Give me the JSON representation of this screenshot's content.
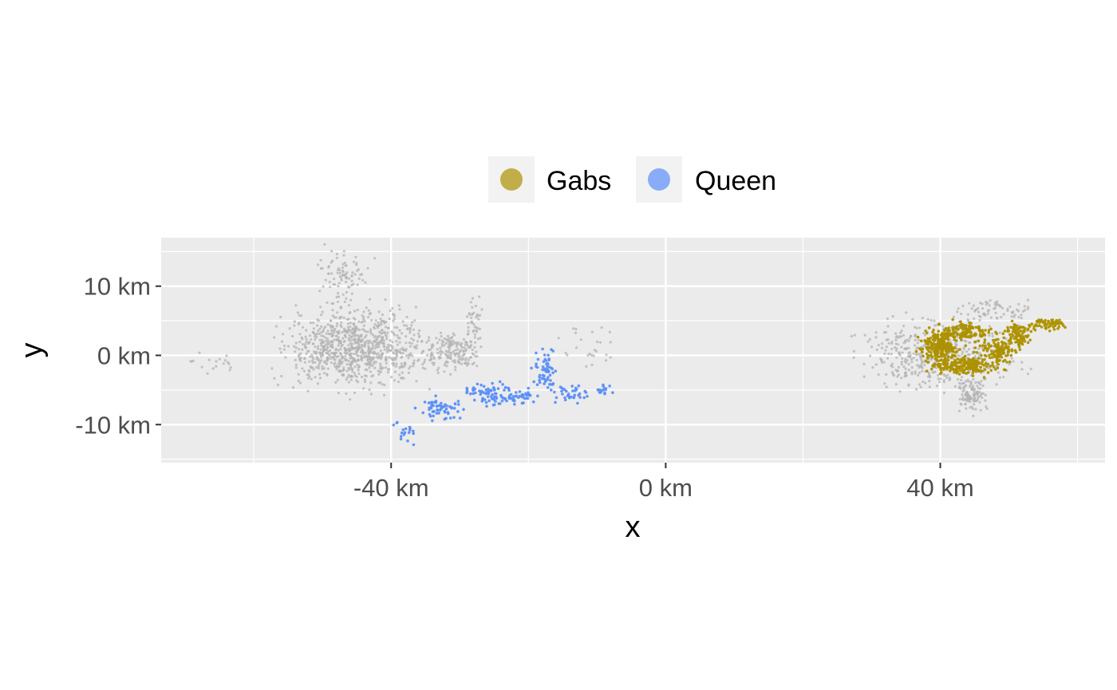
{
  "chart_data": {
    "type": "scatter",
    "title": "",
    "xlabel": "x",
    "ylabel": "y",
    "xlim": [
      -73.5,
      64
    ],
    "ylim": [
      -15.5,
      17
    ],
    "x_major_ticks": [
      {
        "value": -40,
        "label": "-40 km"
      },
      {
        "value": 0,
        "label": "0 km"
      },
      {
        "value": 40,
        "label": "40 km"
      }
    ],
    "x_minor_ticks": [
      -60,
      -20,
      20,
      60
    ],
    "y_major_ticks": [
      {
        "value": 10,
        "label": "10 km"
      },
      {
        "value": 0,
        "label": "0 km"
      },
      {
        "value": -10,
        "label": "-10 km"
      }
    ],
    "y_minor_ticks": [
      15,
      5,
      -5,
      -15
    ],
    "grid": true,
    "legend_position": "top",
    "background_color": "#ebebeb",
    "grid_color": "#ffffff",
    "background_points_color": "#b3b3b3",
    "series": [
      {
        "name": "Gabs",
        "color": "#ad9100",
        "regions": [
          {
            "cx": 40,
            "cy": 1.5,
            "rx": 2.5,
            "ry": 2.5,
            "n": 260
          },
          {
            "cx": 44,
            "cy": 3.5,
            "rx": 3,
            "ry": 1.2,
            "n": 120
          },
          {
            "cx": 43.5,
            "cy": -1.5,
            "rx": 4.5,
            "ry": 1.2,
            "n": 200
          },
          {
            "cx": 48.5,
            "cy": 0.5,
            "rx": 2.5,
            "ry": 2,
            "n": 120
          },
          {
            "cx": 51.5,
            "cy": 3,
            "rx": 2,
            "ry": 1.5,
            "n": 90
          },
          {
            "cx": 55.5,
            "cy": 4.5,
            "rx": 2.5,
            "ry": 0.8,
            "n": 60
          }
        ]
      },
      {
        "name": "Queen",
        "color": "#5b8ff9",
        "regions": [
          {
            "cx": -33,
            "cy": -7.5,
            "rx": 3,
            "ry": 1.5,
            "n": 60
          },
          {
            "cx": -25.5,
            "cy": -5.5,
            "rx": 3.5,
            "ry": 1.5,
            "n": 80
          },
          {
            "cx": -17.5,
            "cy": -2,
            "rx": 1.5,
            "ry": 2.5,
            "n": 60
          },
          {
            "cx": -14,
            "cy": -5.5,
            "rx": 2.5,
            "ry": 1.5,
            "n": 35
          },
          {
            "cx": -9,
            "cy": -5,
            "rx": 1.3,
            "ry": 0.8,
            "n": 18
          },
          {
            "cx": -38,
            "cy": -11,
            "rx": 2,
            "ry": 1.5,
            "n": 18
          },
          {
            "cx": -21,
            "cy": -6,
            "rx": 2,
            "ry": 1.2,
            "n": 30
          }
        ]
      }
    ],
    "background_regions": [
      {
        "cx": -45,
        "cy": 1,
        "rx": 10,
        "ry": 5,
        "n": 900
      },
      {
        "cx": -47,
        "cy": 11,
        "rx": 4,
        "ry": 4,
        "n": 90
      },
      {
        "cx": -31,
        "cy": 0.5,
        "rx": 4,
        "ry": 2.5,
        "n": 160
      },
      {
        "cx": -28,
        "cy": 5,
        "rx": 1,
        "ry": 4,
        "n": 40
      },
      {
        "cx": -66,
        "cy": -1,
        "rx": 3,
        "ry": 1.5,
        "n": 18
      },
      {
        "cx": -11,
        "cy": 1,
        "rx": 3.5,
        "ry": 3,
        "n": 25
      },
      {
        "cx": 40,
        "cy": 0,
        "rx": 10,
        "ry": 5,
        "n": 450
      },
      {
        "cx": 44.5,
        "cy": -5.5,
        "rx": 2,
        "ry": 2.5,
        "n": 110
      },
      {
        "cx": 49,
        "cy": 6.5,
        "rx": 6,
        "ry": 1.5,
        "n": 70
      }
    ]
  }
}
